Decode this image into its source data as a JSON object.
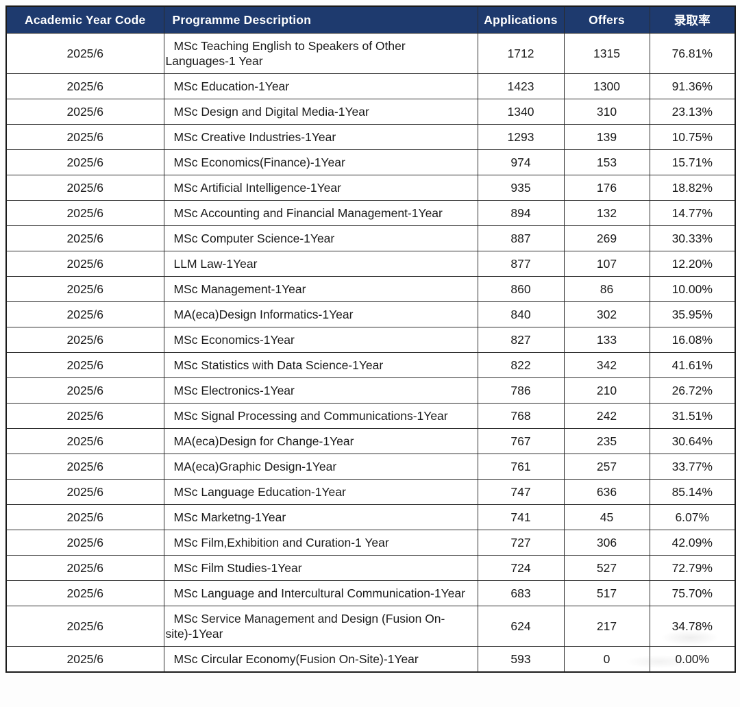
{
  "chart_data": {
    "type": "table",
    "columns": [
      "Academic Year Code",
      "Programme Description",
      "Applications",
      "Offers",
      "录取率"
    ],
    "rows": [
      [
        "2025/6",
        "MSc Teaching English to Speakers of Other Languages-1 Year",
        "1712",
        "1315",
        "76.81%"
      ],
      [
        "2025/6",
        "MSc Education-1Year",
        "1423",
        "1300",
        "91.36%"
      ],
      [
        "2025/6",
        "MSc Design and Digital Media-1Year",
        "1340",
        "310",
        "23.13%"
      ],
      [
        "2025/6",
        "MSc Creative Industries-1Year",
        "1293",
        "139",
        "10.75%"
      ],
      [
        "2025/6",
        "MSc Economics(Finance)-1Year",
        "974",
        "153",
        "15.71%"
      ],
      [
        "2025/6",
        "MSc Artificial Intelligence-1Year",
        "935",
        "176",
        "18.82%"
      ],
      [
        "2025/6",
        "MSc Accounting and Financial Management-1Year",
        "894",
        "132",
        "14.77%"
      ],
      [
        "2025/6",
        "MSc Computer Science-1Year",
        "887",
        "269",
        "30.33%"
      ],
      [
        "2025/6",
        "LLM Law-1Year",
        "877",
        "107",
        "12.20%"
      ],
      [
        "2025/6",
        "MSc Management-1Year",
        "860",
        "86",
        "10.00%"
      ],
      [
        "2025/6",
        "MA(eca)Design Informatics-1Year",
        "840",
        "302",
        "35.95%"
      ],
      [
        "2025/6",
        "MSc Economics-1Year",
        "827",
        "133",
        "16.08%"
      ],
      [
        "2025/6",
        "MSc Statistics with Data Science-1Year",
        "822",
        "342",
        "41.61%"
      ],
      [
        "2025/6",
        "MSc Electronics-1Year",
        "786",
        "210",
        "26.72%"
      ],
      [
        "2025/6",
        "MSc Signal Processing and Communications-1Year",
        "768",
        "242",
        "31.51%"
      ],
      [
        "2025/6",
        "MA(eca)Design for Change-1Year",
        "767",
        "235",
        "30.64%"
      ],
      [
        "2025/6",
        "MA(eca)Graphic Design-1Year",
        "761",
        "257",
        "33.77%"
      ],
      [
        "2025/6",
        "MSc Language Education-1Year",
        "747",
        "636",
        "85.14%"
      ],
      [
        "2025/6",
        "MSc Marketng-1Year",
        "741",
        "45",
        "6.07%"
      ],
      [
        "2025/6",
        "MSc Film,Exhibition and Curation-1 Year",
        "727",
        "306",
        "42.09%"
      ],
      [
        "2025/6",
        "MSc Film Studies-1Year",
        "724",
        "527",
        "72.79%"
      ],
      [
        "2025/6",
        "MSc Language and Intercultural Communication-1Year",
        "683",
        "517",
        "75.70%"
      ],
      [
        "2025/6",
        "MSc Service Management and Design (Fusion On-site)-1Year",
        "624",
        "217",
        "34.78%"
      ],
      [
        "2025/6",
        "MSc Circular Economy(Fusion On-Site)-1Year",
        "593",
        "0",
        "0.00%"
      ]
    ]
  },
  "colors": {
    "header_bg": "#1e3a6e",
    "header_text": "#ffffff",
    "border": "#2b2b2b",
    "border_strong": "#1a1a1a",
    "body_text": "#1a1a1a",
    "row_bg": "#ffffff"
  }
}
